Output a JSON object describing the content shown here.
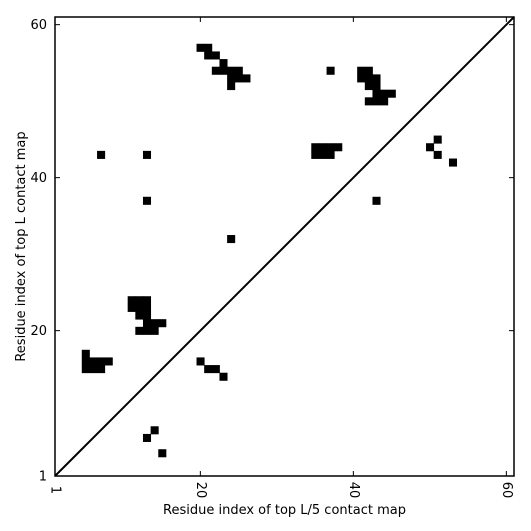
{
  "chart_data": {
    "type": "heatmap",
    "title": "",
    "xlabel": "Residue index of top L/5 contact map",
    "ylabel": "Residue index of top L contact map",
    "xlim": [
      1,
      61
    ],
    "ylim": [
      1,
      61
    ],
    "x_ticks": [
      {
        "value": 1,
        "label": "1"
      },
      {
        "value": 20,
        "label": "20"
      },
      {
        "value": 40,
        "label": "40"
      },
      {
        "value": 60,
        "label": "60"
      }
    ],
    "y_ticks": [
      {
        "value": 1,
        "label": "1"
      },
      {
        "value": 20,
        "label": "20"
      },
      {
        "value": 40,
        "label": "40"
      },
      {
        "value": 60,
        "label": "60"
      }
    ],
    "diagonal_line": true,
    "cell_color": "#000000",
    "upper_triangle_contacts": [
      [
        20,
        57
      ],
      [
        21,
        57
      ],
      [
        21,
        56
      ],
      [
        22,
        56
      ],
      [
        23,
        55
      ],
      [
        22,
        54
      ],
      [
        23,
        54
      ],
      [
        24,
        54
      ],
      [
        25,
        54
      ],
      [
        24,
        53
      ],
      [
        25,
        53
      ],
      [
        26,
        53
      ],
      [
        24,
        52
      ],
      [
        37,
        54
      ],
      [
        41,
        54
      ],
      [
        42,
        54
      ],
      [
        41,
        53
      ],
      [
        42,
        53
      ],
      [
        43,
        53
      ],
      [
        42,
        52
      ],
      [
        43,
        52
      ],
      [
        43,
        51
      ],
      [
        44,
        51
      ],
      [
        45,
        51
      ],
      [
        42,
        50
      ],
      [
        43,
        50
      ],
      [
        44,
        50
      ],
      [
        35,
        44
      ],
      [
        36,
        44
      ],
      [
        37,
        44
      ],
      [
        38,
        44
      ],
      [
        35,
        43
      ],
      [
        36,
        43
      ],
      [
        37,
        43
      ],
      [
        51,
        45
      ],
      [
        50,
        44
      ],
      [
        51,
        43
      ],
      [
        53,
        42
      ],
      [
        7,
        43
      ],
      [
        13,
        43
      ],
      [
        13,
        37
      ],
      [
        24,
        32
      ],
      [
        43,
        37
      ],
      [
        11,
        24
      ],
      [
        12,
        24
      ],
      [
        13,
        24
      ],
      [
        11,
        23
      ],
      [
        12,
        23
      ],
      [
        13,
        23
      ],
      [
        12,
        22
      ],
      [
        13,
        22
      ],
      [
        13,
        21
      ],
      [
        14,
        21
      ],
      [
        15,
        21
      ],
      [
        12,
        20
      ],
      [
        13,
        20
      ],
      [
        14,
        20
      ]
    ],
    "lower_triangle_contacts": [
      [
        5,
        17
      ],
      [
        5,
        16
      ],
      [
        6,
        16
      ],
      [
        7,
        16
      ],
      [
        8,
        16
      ],
      [
        5,
        15
      ],
      [
        6,
        15
      ],
      [
        7,
        15
      ],
      [
        20,
        16
      ],
      [
        21,
        15
      ],
      [
        22,
        15
      ],
      [
        23,
        14
      ],
      [
        14,
        7
      ],
      [
        13,
        6
      ],
      [
        15,
        4
      ]
    ]
  }
}
